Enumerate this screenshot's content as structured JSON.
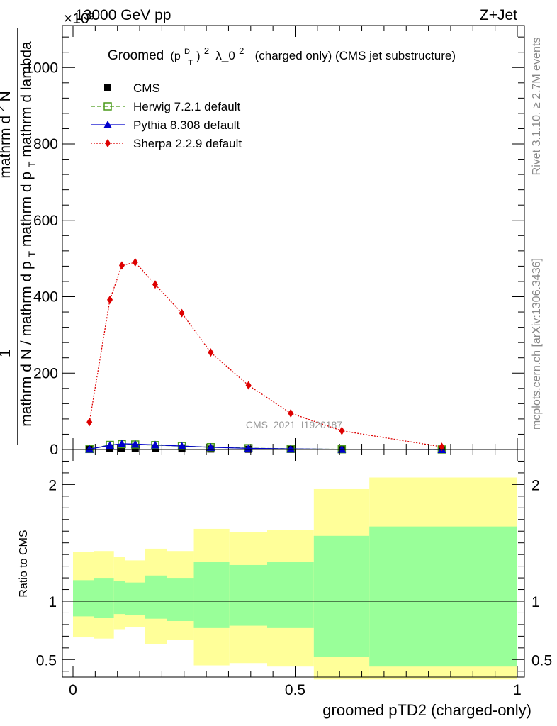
{
  "header": {
    "left": "13000 GeV pp",
    "right": "Z+Jet",
    "exponent": "×10³",
    "watermark": "CMS_2021_I1920187",
    "side_right_top": "Rivet 3.1.10, ≥ 2.7M events",
    "side_right_bottom": "mcplots.cern.ch [arXiv:1306.3436]"
  },
  "chart_data": [
    {
      "type": "line",
      "title_main": "Groomed",
      "title_p": "(p",
      "title_sup1": "D",
      "title_sub1": "T",
      "title_close": ")",
      "title_sup2": "2",
      "title_lambda": "λ_0",
      "title_sup3": "2",
      "title_tail": "(charged only) (CMS jet substructure)",
      "ylabel_num": "1",
      "ylabel_den": "mathrm d N / mathrm d p",
      "ylabel_den_sub": "T",
      "ylabel_den_tail": "mathrm d p",
      "ylabel_den_sub2": "T",
      "ylabel_den_end": "mathrm d lambda",
      "ylabel_top": "mathrm d",
      "ylabel_top2": "N",
      "ylabel_top_sup": "2",
      "xlim": [
        0,
        1
      ],
      "ylim": [
        0,
        1110
      ],
      "yticks": [
        0,
        200,
        400,
        600,
        800,
        1000
      ],
      "ytick_labels": [
        "0",
        "200",
        "400",
        "600",
        "800",
        "1000"
      ],
      "legend": [
        {
          "name": "CMS",
          "color": "#000000",
          "marker": "square-filled",
          "line": "none"
        },
        {
          "name": "Herwig 7.2.1 default",
          "color": "#4a9a1a",
          "marker": "square-open",
          "line": "dashed"
        },
        {
          "name": "Pythia 8.308 default",
          "color": "#0000cc",
          "marker": "triangle",
          "line": "solid"
        },
        {
          "name": "Sherpa 2.2.9 default",
          "color": "#dd0000",
          "marker": "diamond",
          "line": "dotted"
        }
      ],
      "series": [
        {
          "name": "CMS",
          "x": [
            0.037,
            0.083,
            0.11,
            0.14,
            0.185,
            0.245,
            0.31,
            0.395,
            0.49,
            0.605,
            0.83
          ],
          "y": [
            1.2,
            2.3,
            2.7,
            2.6,
            2.3,
            1.8,
            1.2,
            0.7,
            0.35,
            0.12,
            0.02
          ]
        },
        {
          "name": "Herwig 7.2.1 default",
          "x": [
            0.037,
            0.083,
            0.11,
            0.14,
            0.185,
            0.245,
            0.31,
            0.395,
            0.49,
            0.605,
            0.83
          ],
          "y": [
            1.3,
            12,
            14,
            13,
            11.5,
            9,
            6,
            3.5,
            1.8,
            0.6,
            0.1
          ]
        },
        {
          "name": "Pythia 8.308 default",
          "x": [
            0.037,
            0.083,
            0.11,
            0.14,
            0.185,
            0.245,
            0.31,
            0.395,
            0.49,
            0.605,
            0.83
          ],
          "y": [
            1.0,
            11,
            15,
            14,
            12,
            9,
            5.8,
            3.0,
            1.5,
            0.5,
            0.08
          ]
        },
        {
          "name": "Sherpa 2.2.9 default",
          "x": [
            0.037,
            0.083,
            0.11,
            0.14,
            0.185,
            0.245,
            0.31,
            0.395,
            0.49,
            0.605,
            0.83
          ],
          "y": [
            72,
            392,
            482,
            490,
            432,
            357,
            254,
            168,
            95,
            49,
            7
          ]
        }
      ]
    },
    {
      "type": "area",
      "ylabel": "Ratio to CMS",
      "xlabel": "groomed pTD2 (charged-only)",
      "xlim": [
        0,
        1
      ],
      "ylim": [
        0.35,
        2.3
      ],
      "xticks": [
        0,
        0.5,
        1
      ],
      "xtick_labels": [
        "0",
        "0.5",
        "1"
      ],
      "yticks": [
        0.5,
        1,
        2
      ],
      "ytick_labels": [
        "0.5",
        "1",
        "2"
      ],
      "reference_line": 1,
      "band_colors": {
        "inner": "#99ff99",
        "outer": "#ffff99"
      },
      "bins": [
        {
          "lo": 0.0,
          "hi": 0.047,
          "inner": [
            0.87,
            1.18
          ],
          "outer": [
            0.69,
            1.42
          ]
        },
        {
          "lo": 0.047,
          "hi": 0.092,
          "inner": [
            0.86,
            1.2
          ],
          "outer": [
            0.68,
            1.43
          ]
        },
        {
          "lo": 0.092,
          "hi": 0.118,
          "inner": [
            0.89,
            1.17
          ],
          "outer": [
            0.76,
            1.38
          ]
        },
        {
          "lo": 0.118,
          "hi": 0.162,
          "inner": [
            0.88,
            1.16
          ],
          "outer": [
            0.78,
            1.35
          ]
        },
        {
          "lo": 0.162,
          "hi": 0.212,
          "inner": [
            0.85,
            1.22
          ],
          "outer": [
            0.63,
            1.45
          ]
        },
        {
          "lo": 0.212,
          "hi": 0.272,
          "inner": [
            0.83,
            1.2
          ],
          "outer": [
            0.67,
            1.43
          ]
        },
        {
          "lo": 0.272,
          "hi": 0.352,
          "inner": [
            0.77,
            1.34
          ],
          "outer": [
            0.45,
            1.62
          ]
        },
        {
          "lo": 0.352,
          "hi": 0.437,
          "inner": [
            0.79,
            1.31
          ],
          "outer": [
            0.47,
            1.59
          ]
        },
        {
          "lo": 0.437,
          "hi": 0.542,
          "inner": [
            0.77,
            1.34
          ],
          "outer": [
            0.44,
            1.61
          ]
        },
        {
          "lo": 0.542,
          "hi": 0.667,
          "inner": [
            0.52,
            1.56
          ],
          "outer": [
            0.33,
            1.96
          ]
        },
        {
          "lo": 0.667,
          "hi": 1.0,
          "inner": [
            0.44,
            1.64
          ],
          "outer": [
            0.33,
            2.06
          ]
        }
      ]
    }
  ]
}
